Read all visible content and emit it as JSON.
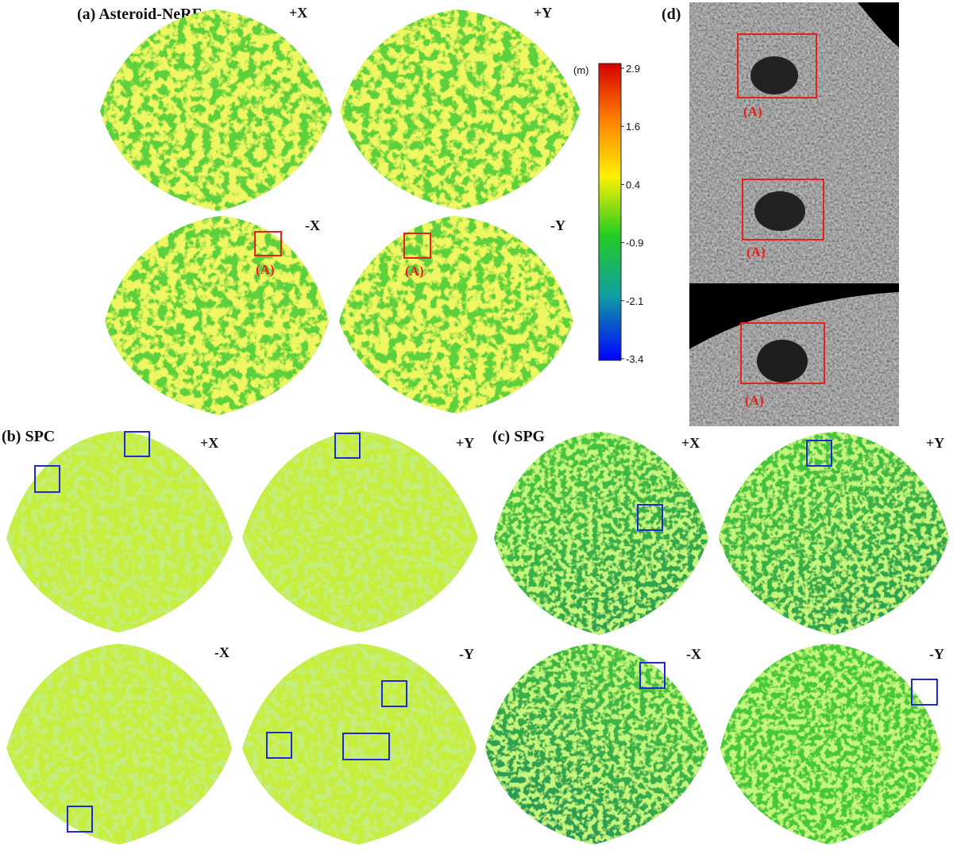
{
  "panels": {
    "a": {
      "title": "(a) Asteroid-NeRF",
      "views": [
        "+X",
        "+Y",
        "-X",
        "-Y"
      ],
      "marker": "(A)"
    },
    "b": {
      "title": "(b) SPC",
      "views": [
        "+X",
        "+Y",
        "-X",
        "-Y"
      ]
    },
    "c": {
      "title": "(c) SPG",
      "views": [
        "+X",
        "+Y",
        "-X",
        "-Y"
      ]
    },
    "d": {
      "title": "(d)",
      "markers": [
        "(A)",
        "(A)",
        "(A)"
      ]
    }
  },
  "colorbar": {
    "unit": "(m)",
    "ticks": [
      "2.9",
      "1.6",
      "0.4",
      "-0.9",
      "-2.1",
      "-3.4"
    ],
    "colors": [
      "#d7191c",
      "#fdae61",
      "#ffff40",
      "#33cc33",
      "#1aa0a0",
      "#0000ff"
    ]
  },
  "colors": {
    "nerf_base": "#5cd13c",
    "spc_base": "#c6ee3a",
    "spg_base": "#3ec93e",
    "highlight_box_red": "#e8201c",
    "highlight_box_blue": "#1f2ad6",
    "photo_dark": "#2e2e2e"
  }
}
